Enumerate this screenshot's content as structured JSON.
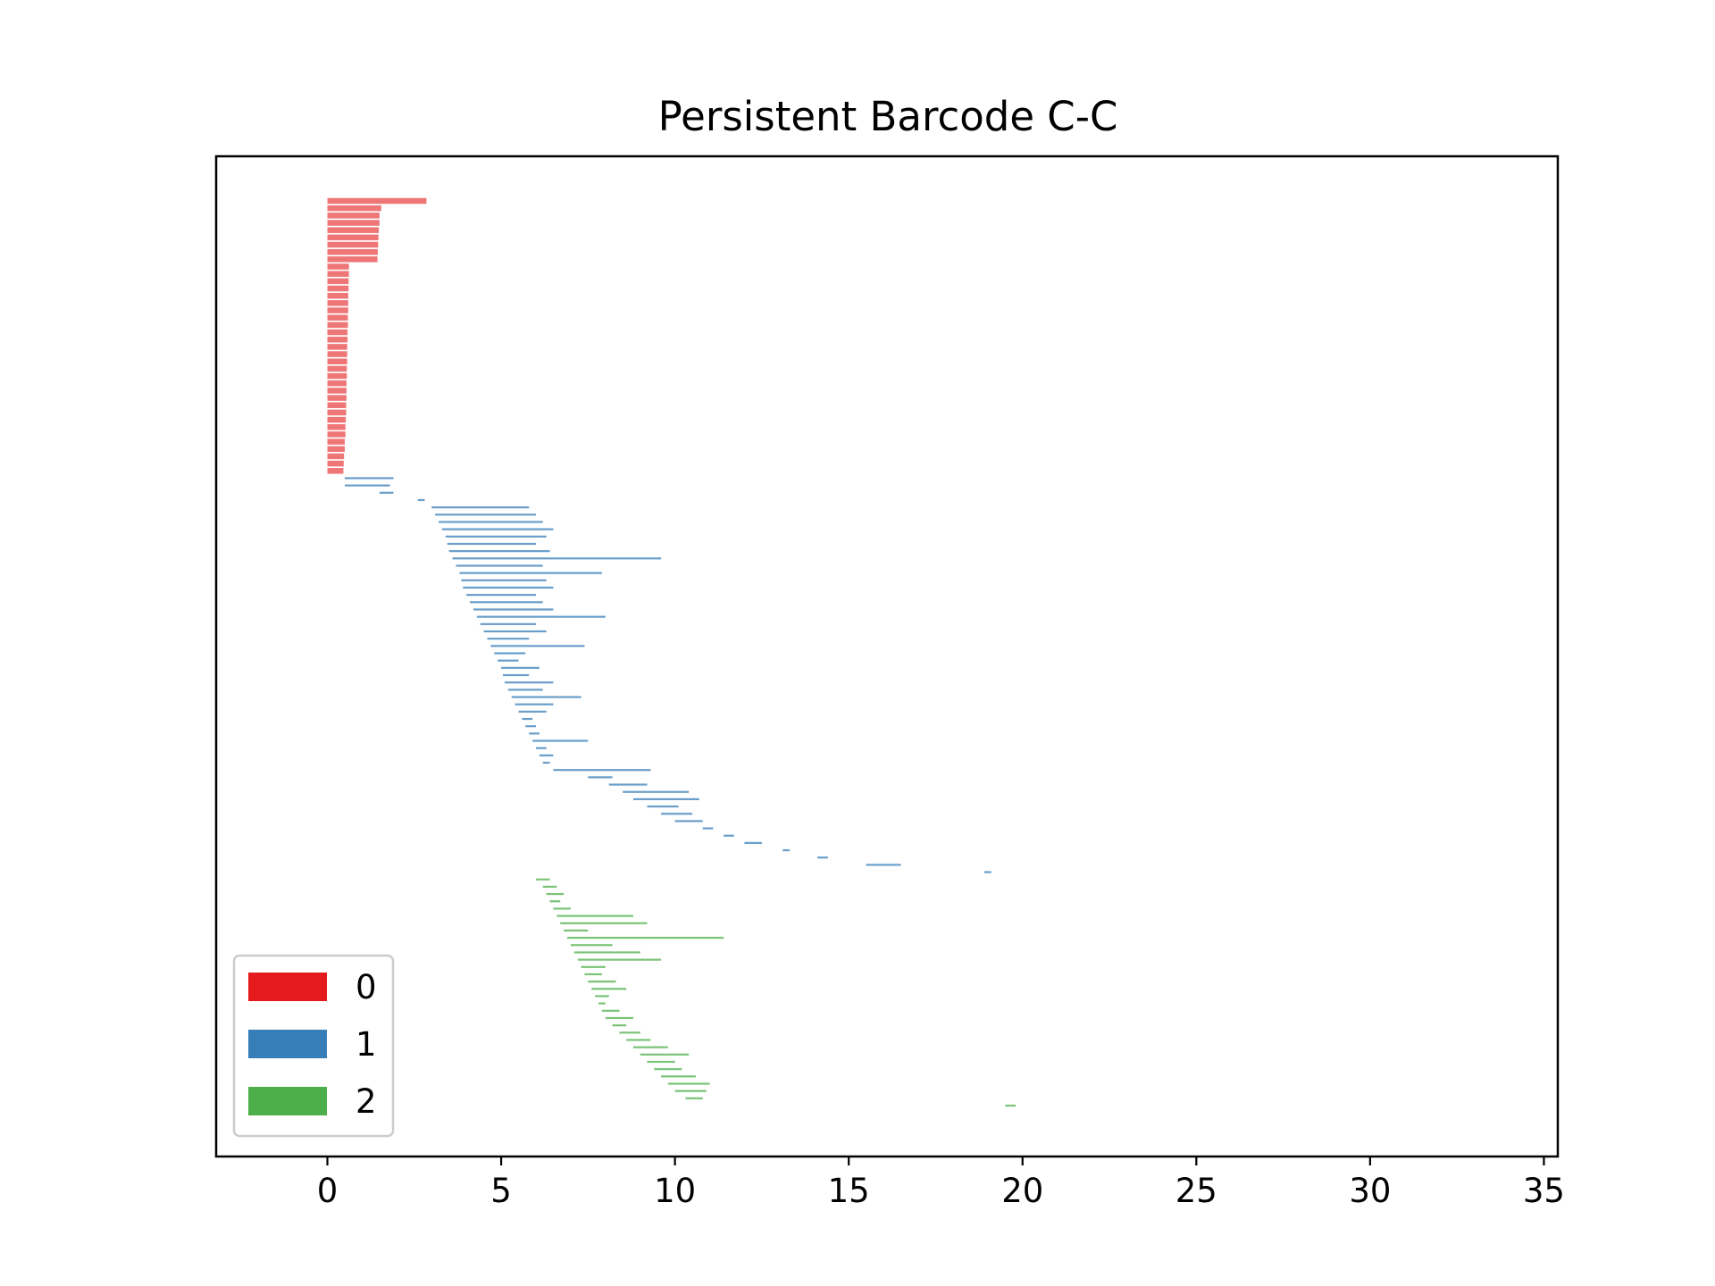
{
  "chart_data": {
    "type": "bar",
    "orientation": "horizontal",
    "title": "Persistent Barcode C-C",
    "xlabel": "",
    "ylabel": "",
    "xlim": [
      -3.2,
      35.4
    ],
    "xticks": [
      0,
      5,
      10,
      15,
      20,
      25,
      30,
      35
    ],
    "grid": false,
    "legend": {
      "placement": "lower-left",
      "entries": [
        "0",
        "1",
        "2"
      ]
    },
    "colors": {
      "0": "#e41a1c",
      "1": "#377eb8",
      "2": "#4daf4a"
    },
    "series": [
      {
        "name": "0",
        "color": "#e41a1c",
        "description": "dimension-0 intervals (birth, death)",
        "intervals": [
          [
            0,
            2.85
          ],
          [
            0,
            1.55
          ],
          [
            0,
            1.5
          ],
          [
            0,
            1.5
          ],
          [
            0,
            1.48
          ],
          [
            0,
            1.47
          ],
          [
            0,
            1.46
          ],
          [
            0,
            1.45
          ],
          [
            0,
            1.44
          ],
          [
            0,
            0.62
          ],
          [
            0,
            0.62
          ],
          [
            0,
            0.61
          ],
          [
            0,
            0.61
          ],
          [
            0,
            0.6
          ],
          [
            0,
            0.6
          ],
          [
            0,
            0.6
          ],
          [
            0,
            0.59
          ],
          [
            0,
            0.59
          ],
          [
            0,
            0.58
          ],
          [
            0,
            0.58
          ],
          [
            0,
            0.57
          ],
          [
            0,
            0.57
          ],
          [
            0,
            0.57
          ],
          [
            0,
            0.56
          ],
          [
            0,
            0.56
          ],
          [
            0,
            0.55
          ],
          [
            0,
            0.55
          ],
          [
            0,
            0.55
          ],
          [
            0,
            0.54
          ],
          [
            0,
            0.54
          ],
          [
            0,
            0.53
          ],
          [
            0,
            0.52
          ],
          [
            0,
            0.52
          ],
          [
            0,
            0.5
          ],
          [
            0,
            0.5
          ],
          [
            0,
            0.48
          ],
          [
            0,
            0.47
          ],
          [
            0,
            0.46
          ]
        ]
      },
      {
        "name": "1",
        "color": "#377eb8",
        "description": "dimension-1 intervals (birth, death)",
        "intervals": [
          [
            0.5,
            1.9
          ],
          [
            0.5,
            1.8
          ],
          [
            1.5,
            1.9
          ],
          [
            2.6,
            2.8
          ],
          [
            3.0,
            5.8
          ],
          [
            3.1,
            6.0
          ],
          [
            3.2,
            6.2
          ],
          [
            3.3,
            6.5
          ],
          [
            3.4,
            6.3
          ],
          [
            3.45,
            6.0
          ],
          [
            3.5,
            6.4
          ],
          [
            3.6,
            9.6
          ],
          [
            3.7,
            6.2
          ],
          [
            3.8,
            7.9
          ],
          [
            3.85,
            6.3
          ],
          [
            3.9,
            6.5
          ],
          [
            4.0,
            6.0
          ],
          [
            4.1,
            6.2
          ],
          [
            4.2,
            6.5
          ],
          [
            4.3,
            8.0
          ],
          [
            4.4,
            6.0
          ],
          [
            4.5,
            6.3
          ],
          [
            4.6,
            5.8
          ],
          [
            4.7,
            7.4
          ],
          [
            4.8,
            5.7
          ],
          [
            4.9,
            5.5
          ],
          [
            5.0,
            6.1
          ],
          [
            5.05,
            5.8
          ],
          [
            5.1,
            6.5
          ],
          [
            5.2,
            6.2
          ],
          [
            5.3,
            7.3
          ],
          [
            5.4,
            6.5
          ],
          [
            5.5,
            6.3
          ],
          [
            5.6,
            5.9
          ],
          [
            5.7,
            6.0
          ],
          [
            5.8,
            6.1
          ],
          [
            5.9,
            7.5
          ],
          [
            6.0,
            6.3
          ],
          [
            6.1,
            6.5
          ],
          [
            6.2,
            6.4
          ],
          [
            6.5,
            9.3
          ],
          [
            7.5,
            8.2
          ],
          [
            8.1,
            9.2
          ],
          [
            8.5,
            10.4
          ],
          [
            8.8,
            10.7
          ],
          [
            9.2,
            10.1
          ],
          [
            9.6,
            10.5
          ],
          [
            10.0,
            10.8
          ],
          [
            10.8,
            11.1
          ],
          [
            11.4,
            11.7
          ],
          [
            12.0,
            12.5
          ],
          [
            13.1,
            13.3
          ],
          [
            14.1,
            14.4
          ],
          [
            15.5,
            16.5
          ],
          [
            18.9,
            19.1
          ]
        ]
      },
      {
        "name": "2",
        "color": "#4daf4a",
        "description": "dimension-2 intervals (birth, death)",
        "intervals": [
          [
            6.0,
            6.4
          ],
          [
            6.2,
            6.6
          ],
          [
            6.3,
            6.8
          ],
          [
            6.4,
            6.7
          ],
          [
            6.5,
            7.0
          ],
          [
            6.6,
            8.8
          ],
          [
            6.7,
            9.2
          ],
          [
            6.8,
            7.5
          ],
          [
            6.9,
            11.4
          ],
          [
            7.0,
            8.2
          ],
          [
            7.1,
            9.0
          ],
          [
            7.2,
            9.6
          ],
          [
            7.3,
            8.0
          ],
          [
            7.4,
            7.9
          ],
          [
            7.5,
            8.3
          ],
          [
            7.6,
            8.6
          ],
          [
            7.7,
            8.1
          ],
          [
            7.8,
            8.0
          ],
          [
            7.9,
            8.4
          ],
          [
            8.0,
            8.8
          ],
          [
            8.2,
            8.6
          ],
          [
            8.4,
            9.0
          ],
          [
            8.6,
            9.3
          ],
          [
            8.8,
            9.8
          ],
          [
            9.0,
            10.4
          ],
          [
            9.2,
            10.0
          ],
          [
            9.4,
            10.2
          ],
          [
            9.6,
            10.6
          ],
          [
            9.8,
            11.0
          ],
          [
            10.0,
            10.9
          ],
          [
            10.3,
            10.8
          ],
          [
            19.5,
            19.8
          ]
        ]
      }
    ]
  }
}
